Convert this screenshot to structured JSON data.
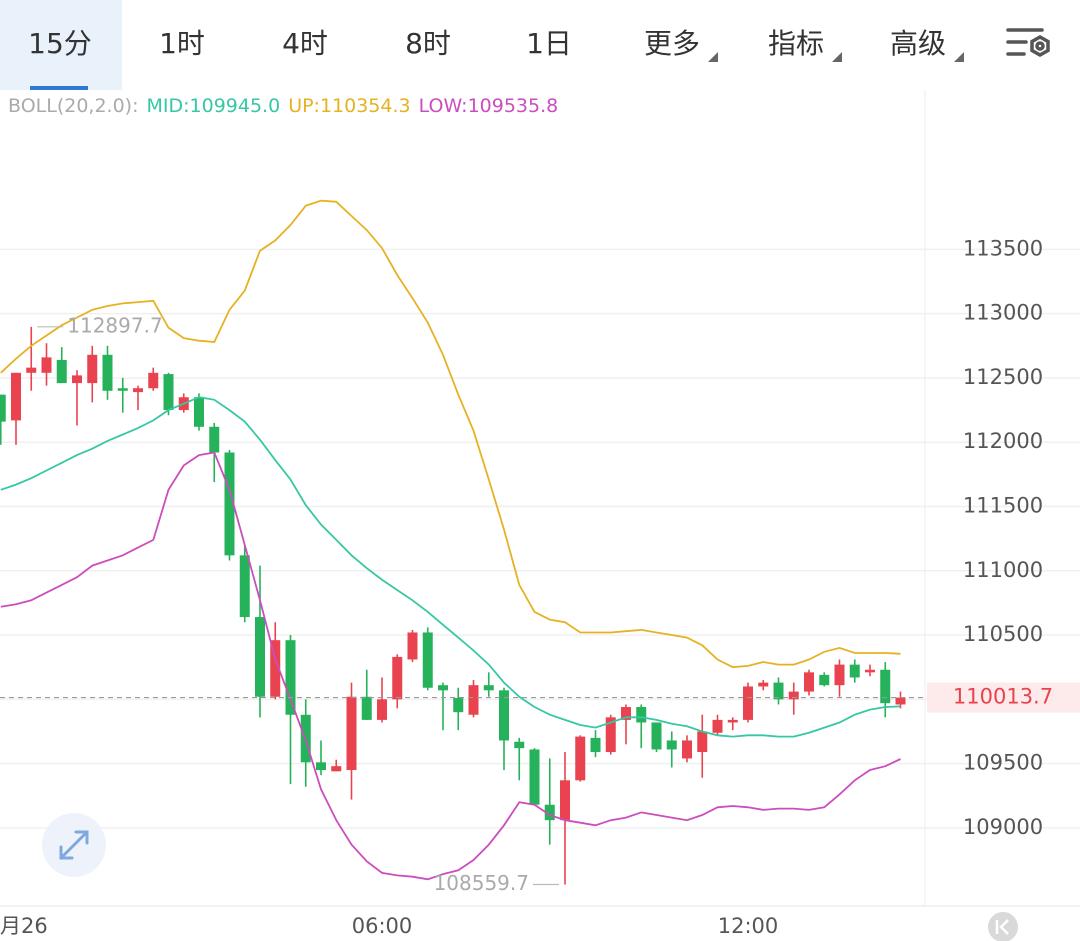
{
  "tabs": [
    {
      "label": "15分",
      "active": true
    },
    {
      "label": "1时",
      "active": false
    },
    {
      "label": "4时",
      "active": false
    },
    {
      "label": "8时",
      "active": false
    },
    {
      "label": "1日",
      "active": false
    },
    {
      "label": "更多",
      "active": false,
      "dropdown": true
    },
    {
      "label": "指标",
      "active": false,
      "dropdown": true
    },
    {
      "label": "高级",
      "active": false,
      "dropdown": true
    }
  ],
  "chart_data": {
    "type": "candlestick",
    "indicator": "BOLL(20,2.0):",
    "categories": [
      null,
      "月26",
      null,
      null,
      null,
      null,
      null,
      null,
      null,
      null,
      null,
      null,
      null,
      null,
      null,
      null,
      null,
      null,
      null,
      null,
      null,
      null,
      null,
      null,
      null,
      "06:00",
      null,
      null,
      null,
      null,
      null,
      null,
      null,
      null,
      null,
      null,
      null,
      null,
      null,
      null,
      null,
      null,
      null,
      null,
      null,
      null,
      null,
      null,
      null,
      "12:00",
      null,
      null,
      null,
      null,
      null,
      null,
      null,
      null,
      null,
      null
    ],
    "open": [
      112370,
      112170,
      112540,
      112540,
      112640,
      112460,
      112460,
      112680,
      112420,
      112390,
      112420,
      112530,
      112250,
      112350,
      112120,
      111920,
      111120,
      110640,
      110020,
      110460,
      109880,
      109510,
      109440,
      109450,
      110020,
      109840,
      110000,
      110310,
      110520,
      110110,
      110010,
      109880,
      110110,
      110070,
      109670,
      109610,
      109180,
      109060,
      109370,
      109700,
      109590,
      109840,
      109940,
      109820,
      109680,
      109540,
      109590,
      109740,
      109820,
      109840,
      110100,
      110130,
      110000,
      110060,
      110190,
      110110,
      110270,
      110210,
      110230,
      109960
    ],
    "high": [
      112370,
      112540,
      112897.7,
      112770,
      112740,
      112560,
      112750,
      112750,
      112500,
      112440,
      112580,
      112540,
      112380,
      112380,
      112150,
      111940,
      111200,
      111040,
      110600,
      110500,
      110000,
      109680,
      109530,
      110130,
      110230,
      110170,
      110350,
      110540,
      110560,
      110130,
      110090,
      110150,
      110210,
      110090,
      109700,
      109620,
      109540,
      109590,
      109720,
      109760,
      109880,
      109960,
      109960,
      109820,
      109750,
      109720,
      109880,
      109880,
      109860,
      110130,
      110150,
      110170,
      110130,
      110230,
      110210,
      110310,
      110310,
      110270,
      110290,
      110060
    ],
    "low": [
      111980,
      111980,
      112400,
      112440,
      112460,
      112130,
      112310,
      112330,
      112230,
      112250,
      112400,
      112210,
      112230,
      112090,
      111690,
      111080,
      110600,
      109860,
      110000,
      109340,
      109320,
      109410,
      109440,
      109220,
      109840,
      109820,
      109930,
      110290,
      110070,
      109760,
      109760,
      109860,
      110020,
      109450,
      109370,
      109180,
      108870,
      108559.7,
      109360,
      109550,
      109570,
      109650,
      109620,
      109590,
      109470,
      109510,
      109390,
      109720,
      109760,
      109820,
      110070,
      109960,
      109880,
      110030,
      110100,
      110020,
      110130,
      110180,
      109860,
      109930
    ],
    "close": [
      112160,
      112540,
      112580,
      112660,
      112460,
      112520,
      112680,
      112400,
      112400,
      112420,
      112540,
      112250,
      112350,
      112120,
      111920,
      111120,
      110640,
      110020,
      110460,
      109880,
      109510,
      109450,
      109480,
      110020,
      109840,
      110000,
      110330,
      110520,
      110090,
      110070,
      109900,
      110110,
      110070,
      109680,
      109620,
      109180,
      109060,
      109370,
      109710,
      109590,
      109860,
      109940,
      109820,
      109610,
      109610,
      109680,
      109750,
      109840,
      109840,
      110100,
      110130,
      110000,
      110060,
      110210,
      110110,
      110270,
      110170,
      110230,
      109970,
      110013.7
    ],
    "up_color": "#e8434f",
    "down_color": "#26b25a",
    "lines": [
      {
        "name": "MID:109945.0",
        "color": "#36c7a4",
        "values": [
          111630,
          111670,
          111720,
          111780,
          111840,
          111900,
          111950,
          112010,
          112060,
          112110,
          112170,
          112250,
          112300,
          112350,
          112330,
          112250,
          112160,
          112020,
          111860,
          111710,
          111510,
          111360,
          111240,
          111120,
          111020,
          110930,
          110850,
          110770,
          110680,
          110580,
          110480,
          110380,
          110270,
          110130,
          110020,
          109940,
          109880,
          109840,
          109800,
          109780,
          109820,
          109860,
          109860,
          109840,
          109810,
          109790,
          109750,
          109720,
          109710,
          109720,
          109720,
          109710,
          109710,
          109740,
          109780,
          109820,
          109880,
          109920,
          109940,
          109945.0
        ]
      },
      {
        "name": "UP:110354.3",
        "color": "#e6b222",
        "values": [
          112540,
          112650,
          112750,
          112830,
          112910,
          112970,
          113030,
          113060,
          113080,
          113090,
          113100,
          112890,
          112810,
          112790,
          112780,
          113030,
          113180,
          113490,
          113570,
          113690,
          113840,
          113880,
          113870,
          113760,
          113650,
          113510,
          113300,
          113120,
          112930,
          112680,
          112370,
          112090,
          111710,
          111320,
          110890,
          110680,
          110620,
          110600,
          110520,
          110520,
          110520,
          110530,
          110540,
          110520,
          110500,
          110480,
          110420,
          110310,
          110250,
          110260,
          110290,
          110270,
          110270,
          110310,
          110370,
          110400,
          110360,
          110360,
          110360,
          110354.3
        ]
      },
      {
        "name": "LOW:109535.8",
        "color": "#cc4dbd",
        "values": [
          110720,
          110740,
          110770,
          110830,
          110890,
          110950,
          111040,
          111080,
          111120,
          111180,
          111240,
          111630,
          111820,
          111900,
          111920,
          111630,
          111200,
          110770,
          110310,
          110000,
          109680,
          109300,
          109060,
          108870,
          108740,
          108650,
          108630,
          108620,
          108600,
          108640,
          108670,
          108750,
          108870,
          109020,
          109200,
          109180,
          109100,
          109060,
          109040,
          109020,
          109060,
          109080,
          109120,
          109100,
          109080,
          109060,
          109100,
          109160,
          109170,
          109160,
          109140,
          109150,
          109150,
          109140,
          109160,
          109260,
          109370,
          109450,
          109480,
          109535.8
        ]
      }
    ],
    "ylim": [
      108400,
      114740
    ],
    "yticks": [
      109000,
      109500,
      110000,
      110500,
      111000,
      111500,
      112000,
      112500,
      113000,
      113500
    ],
    "grid": true
  }
}
